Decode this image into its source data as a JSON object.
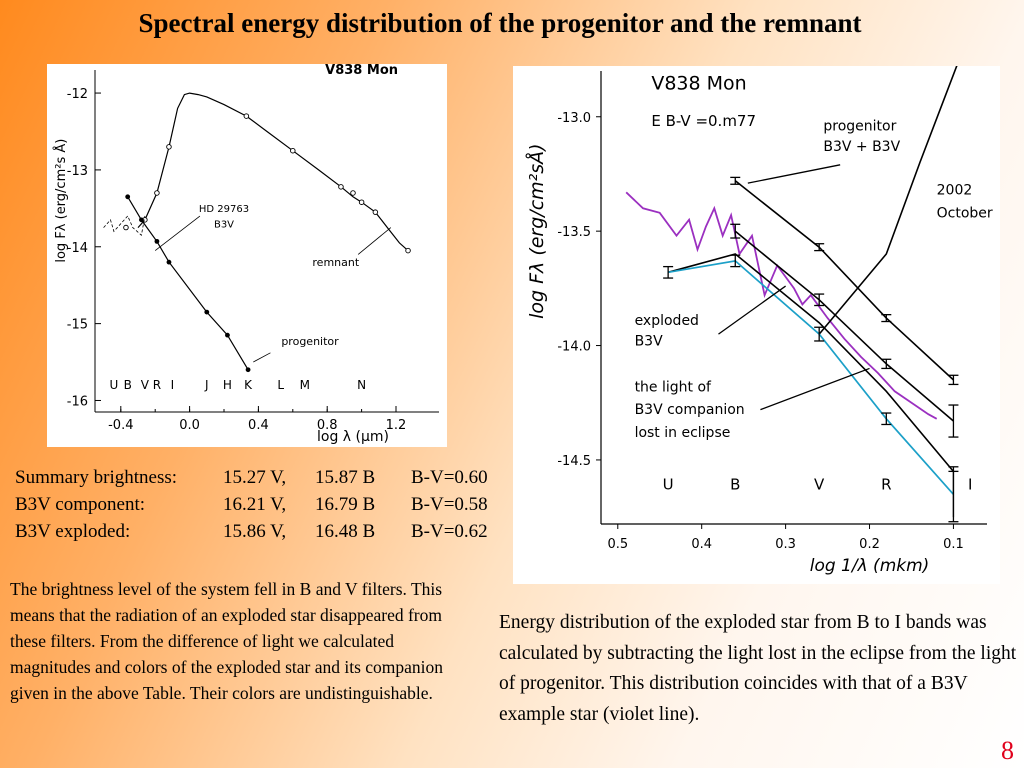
{
  "slide": {
    "title": "Spectral energy distribution of the progenitor and the remnant",
    "page_number": "8",
    "summary_rows": [
      {
        "label": "Summary brightness:",
        "v": "15.27 V,",
        "b": "15.87 B",
        "bv": "B-V=0.60"
      },
      {
        "label": "B3V component:",
        "v": "16.21 V,",
        "b": "16.79 B",
        "bv": "B-V=0.58"
      },
      {
        "label": "B3V exploded:",
        "v": "15.86 V,",
        "b": "16.48 B",
        "bv": "B-V=0.62"
      }
    ],
    "left_paragraph": "The brightness level of the system fell in B and V filters. This means that the radiation of an exploded star disappeared from these filters. From the difference of light we calculated magnitudes and colors of the exploded star and its companion given in the above Table. Their colors are undistinguishable.",
    "right_paragraph": "Energy distribution of the exploded star from B to I bands was calculated by subtracting the light lost in the eclipse from the light of progenitor. This distribution coincides with that of a B3V example star (violet line).",
    "colors": {
      "page_number": "#e0001b",
      "violet": "#9b30c0",
      "cyan": "#1ca0c8"
    }
  },
  "chart_data": [
    {
      "type": "line",
      "title": "V838 Mon",
      "xlabel": "log λ (μm)",
      "ylabel": "log Fλ (erg/cm²s Å)",
      "xlim": [
        -0.55,
        1.45
      ],
      "ylim": [
        -16.15,
        -11.7
      ],
      "x_ticks": [
        -0.4,
        0.0,
        0.4,
        0.8,
        1.2
      ],
      "x_tick_labels": [
        "-0.4",
        "0.0",
        "0.4",
        "0.8",
        "1.2"
      ],
      "y_ticks": [
        -12,
        -13,
        -14,
        -15,
        -16
      ],
      "y_tick_labels": [
        "-12",
        "-13",
        "-14",
        "-15",
        "-16"
      ],
      "band_labels": [
        "U",
        "B",
        "V",
        "R",
        "I",
        "J",
        "H",
        "K",
        "L",
        "M",
        "N"
      ],
      "band_x": [
        -0.44,
        -0.36,
        -0.26,
        -0.19,
        -0.1,
        0.1,
        0.22,
        0.34,
        0.53,
        0.67,
        1.0
      ],
      "annotations": [
        "HD 29763",
        "B3V",
        "remnant",
        "progenitor"
      ],
      "series": [
        {
          "name": "remnant",
          "x": [
            -0.3,
            -0.26,
            -0.19,
            -0.12,
            -0.07,
            -0.03,
            0.0,
            0.05,
            0.1,
            0.2,
            0.33,
            0.45,
            0.6,
            0.75,
            0.88,
            0.95,
            1.0,
            1.08,
            1.15,
            1.22,
            1.27
          ],
          "y": [
            -13.75,
            -13.65,
            -13.3,
            -12.7,
            -12.2,
            -12.02,
            -12.0,
            -12.02,
            -12.05,
            -12.15,
            -12.3,
            -12.5,
            -12.75,
            -13.0,
            -13.22,
            -13.35,
            -13.42,
            -13.55,
            -13.75,
            -13.95,
            -14.05
          ],
          "marker_x": [
            -0.37,
            -0.26,
            -0.19,
            -0.12,
            0.33,
            0.6,
            0.88,
            0.95,
            1.0,
            1.08,
            1.27
          ],
          "marker_y": [
            -13.75,
            -13.65,
            -13.3,
            -12.7,
            -12.3,
            -12.75,
            -13.22,
            -13.3,
            -13.42,
            -13.55,
            -14.05
          ]
        },
        {
          "name": "progenitor",
          "x": [
            -0.36,
            -0.28,
            -0.19,
            -0.12,
            0.1,
            0.22,
            0.34
          ],
          "y": [
            -13.35,
            -13.65,
            -13.93,
            -14.2,
            -14.85,
            -15.15,
            -15.6
          ]
        },
        {
          "name": "HD 29763 B3V",
          "x": [
            -0.5,
            -0.46,
            -0.44,
            -0.4,
            -0.36,
            -0.33,
            -0.28,
            -0.26
          ],
          "y": [
            -13.75,
            -13.65,
            -13.8,
            -13.7,
            -13.6,
            -13.75,
            -13.85,
            -13.6
          ]
        }
      ]
    },
    {
      "type": "line",
      "title": "V838 Mon",
      "subtitle": "E B-V =0.m77",
      "xlabel": "log 1/λ (mkm)",
      "ylabel": "log Fλ (erg/cm²sÅ)",
      "x_reversed": true,
      "xlim": [
        0.52,
        0.06
      ],
      "ylim": [
        -14.78,
        -12.8
      ],
      "x_ticks": [
        0.5,
        0.4,
        0.3,
        0.2,
        0.1
      ],
      "x_tick_labels": [
        "0.5",
        "0.4",
        "0.3",
        "0.2",
        "0.1"
      ],
      "y_ticks": [
        -13.0,
        -13.5,
        -14.0,
        -14.5
      ],
      "y_tick_labels": [
        "-13.0",
        "-13.5",
        "-14.0",
        "-14.5"
      ],
      "band_labels": [
        "U",
        "B",
        "V",
        "R",
        "I"
      ],
      "band_x": [
        0.44,
        0.36,
        0.26,
        0.18,
        0.08
      ],
      "annotations": [
        "progenitor",
        "B3V + B3V",
        "2002",
        "October",
        "exploded",
        "B3V",
        "the light of",
        "B3V companion",
        "lost in eclipse"
      ],
      "series": [
        {
          "name": "progenitor B3V + B3V",
          "x": [
            0.36,
            0.26,
            0.18,
            0.1
          ],
          "y": [
            -13.28,
            -13.57,
            -13.88,
            -14.15
          ],
          "err": [
            0.015,
            0.015,
            0.015,
            0.02
          ]
        },
        {
          "name": "",
          "x": [
            0.36,
            0.26,
            0.18,
            0.1
          ],
          "y": [
            -13.5,
            -13.8,
            -14.08,
            -14.33
          ],
          "err": [
            0.03,
            0.025,
            0.02,
            0.07
          ]
        },
        {
          "name": "exploded B3V",
          "x": [
            0.44,
            0.36,
            0.26,
            0.18,
            0.1
          ],
          "y": [
            -13.68,
            -13.63,
            -13.95,
            -14.32,
            -14.65
          ],
          "err": [
            0.025,
            0.025,
            0.03,
            0.025,
            0.12
          ],
          "color": "#1ca0c8"
        },
        {
          "name": "",
          "x": [
            0.44,
            0.36,
            0.26,
            0.18,
            0.1
          ],
          "y": [
            -13.68,
            -13.6,
            -13.9,
            -14.2,
            -14.55
          ]
        },
        {
          "name": "2002 October",
          "x": [
            0.26,
            0.18,
            0.14,
            0.09
          ],
          "y": [
            -13.95,
            -13.6,
            -13.2,
            -12.72
          ]
        },
        {
          "name": "B3V",
          "x": [
            0.49,
            0.47,
            0.45,
            0.43,
            0.415,
            0.405,
            0.395,
            0.385,
            0.375,
            0.365,
            0.355,
            0.34,
            0.325,
            0.31,
            0.3,
            0.29,
            0.28,
            0.27,
            0.25,
            0.23,
            0.21,
            0.19,
            0.17,
            0.15,
            0.13,
            0.12
          ],
          "y": [
            -13.33,
            -13.4,
            -13.42,
            -13.52,
            -13.45,
            -13.58,
            -13.48,
            -13.4,
            -13.52,
            -13.43,
            -13.6,
            -13.52,
            -13.78,
            -13.65,
            -13.7,
            -13.75,
            -13.82,
            -13.78,
            -13.88,
            -13.97,
            -14.05,
            -14.12,
            -14.2,
            -14.25,
            -14.3,
            -14.32
          ],
          "color": "#9b30c0"
        }
      ]
    }
  ]
}
